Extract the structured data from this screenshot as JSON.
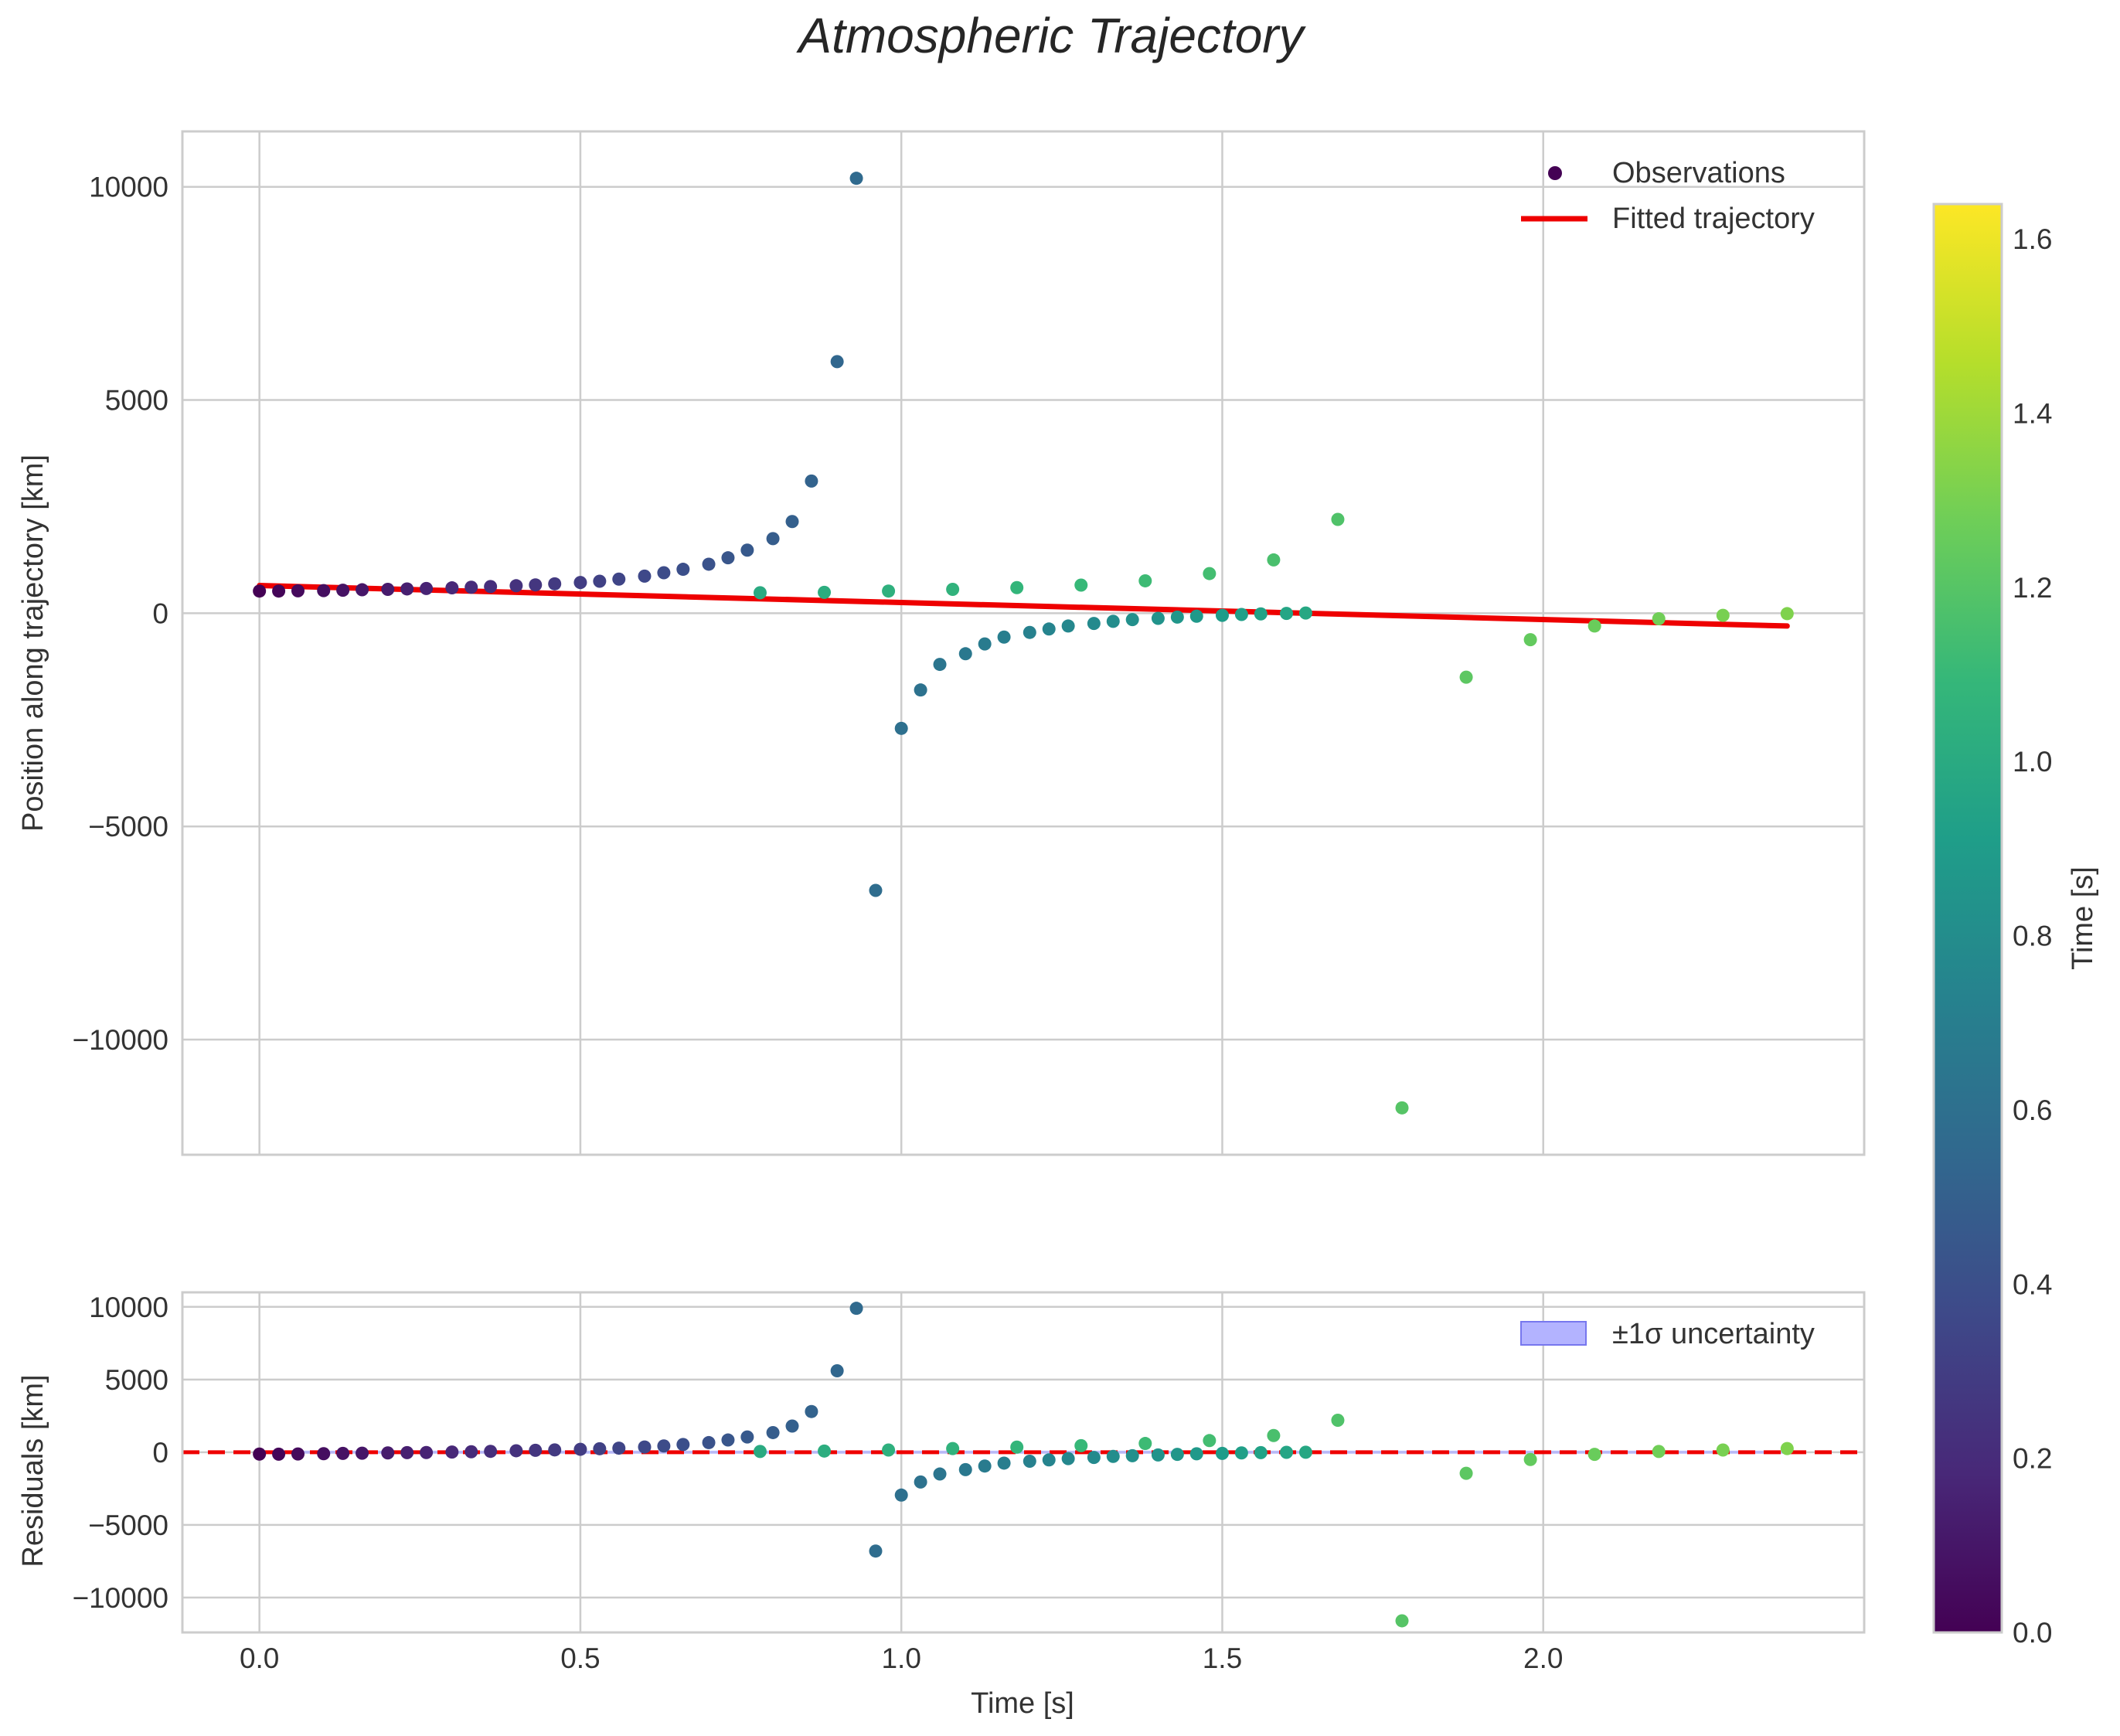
{
  "chart_data": {
    "type": "scatter",
    "title": "Atmospheric Trajectory",
    "colormap": "viridis",
    "colormap_stops": [
      "#440154",
      "#482878",
      "#3e4989",
      "#31688e",
      "#26828e",
      "#1f9e89",
      "#35b779",
      "#6ece58",
      "#b5de2b",
      "#fde725"
    ],
    "fit_color": "#ee0000",
    "band_color": "#b3b3ff",
    "panels": [
      {
        "id": "position",
        "ylabel": "Position along trajectory [km]",
        "ylim": [
          -12700,
          11300
        ],
        "yticks": [
          10000,
          5000,
          0,
          -5000,
          -10000
        ],
        "ytick_labels": [
          "10000",
          "5000",
          "0",
          "−5000",
          "−10000"
        ],
        "legend": [
          "Observations",
          "Fitted trajectory"
        ]
      },
      {
        "id": "residuals",
        "ylabel": "Residuals [km]",
        "ylim": [
          -12400,
          11000
        ],
        "yticks": [
          10000,
          5000,
          0,
          -5000,
          -10000
        ],
        "ytick_labels": [
          "10000",
          "5000",
          "0",
          "−5000",
          "−10000"
        ],
        "legend": [
          "±1σ uncertainty"
        ]
      }
    ],
    "xlim": [
      -0.12,
      2.5
    ],
    "xticks": [
      0.0,
      0.5,
      1.0,
      1.5,
      2.0
    ],
    "xtick_labels": [
      "0.0",
      "0.5",
      "1.0",
      "1.5",
      "2.0"
    ],
    "xlabel": "Time [s]",
    "colorbar": {
      "label": "Time [s]",
      "range": [
        0.0,
        1.64
      ],
      "ticks": [
        0.0,
        0.2,
        0.4,
        0.6,
        0.8,
        1.0,
        1.2,
        1.4,
        1.6
      ],
      "tick_labels": [
        "0.0",
        "0.2",
        "0.4",
        "0.6",
        "0.8",
        "1.0",
        "1.2",
        "1.4",
        "1.6"
      ]
    },
    "fitted_trajectory": {
      "x": [
        0.0,
        2.38
      ],
      "y": [
        650,
        -300
      ]
    },
    "series": [
      {
        "x": 0.0,
        "y": 520,
        "resid": -130,
        "c": 0.0
      },
      {
        "x": 0.03,
        "y": 520,
        "resid": -135,
        "c": 0.02
      },
      {
        "x": 0.06,
        "y": 525,
        "resid": -120,
        "c": 0.04
      },
      {
        "x": 0.1,
        "y": 530,
        "resid": -100,
        "c": 0.06
      },
      {
        "x": 0.13,
        "y": 540,
        "resid": -80,
        "c": 0.08
      },
      {
        "x": 0.16,
        "y": 550,
        "resid": -70,
        "c": 0.1
      },
      {
        "x": 0.2,
        "y": 560,
        "resid": -50,
        "c": 0.12
      },
      {
        "x": 0.23,
        "y": 570,
        "resid": -30,
        "c": 0.14
      },
      {
        "x": 0.26,
        "y": 580,
        "resid": -20,
        "c": 0.16
      },
      {
        "x": 0.3,
        "y": 595,
        "resid": 10,
        "c": 0.18
      },
      {
        "x": 0.33,
        "y": 610,
        "resid": 30,
        "c": 0.2
      },
      {
        "x": 0.36,
        "y": 625,
        "resid": 60,
        "c": 0.22
      },
      {
        "x": 0.4,
        "y": 645,
        "resid": 100,
        "c": 0.24
      },
      {
        "x": 0.43,
        "y": 665,
        "resid": 130,
        "c": 0.26
      },
      {
        "x": 0.46,
        "y": 690,
        "resid": 160,
        "c": 0.28
      },
      {
        "x": 0.5,
        "y": 720,
        "resid": 200,
        "c": 0.3
      },
      {
        "x": 0.53,
        "y": 750,
        "resid": 240,
        "c": 0.32
      },
      {
        "x": 0.56,
        "y": 800,
        "resid": 280,
        "c": 0.34
      },
      {
        "x": 0.6,
        "y": 870,
        "resid": 360,
        "c": 0.36
      },
      {
        "x": 0.63,
        "y": 950,
        "resid": 430,
        "c": 0.38
      },
      {
        "x": 0.66,
        "y": 1030,
        "resid": 530,
        "c": 0.4
      },
      {
        "x": 0.7,
        "y": 1150,
        "resid": 660,
        "c": 0.42
      },
      {
        "x": 0.73,
        "y": 1300,
        "resid": 840,
        "c": 0.44
      },
      {
        "x": 0.76,
        "y": 1480,
        "resid": 1050,
        "c": 0.46
      },
      {
        "x": 0.8,
        "y": 1750,
        "resid": 1350,
        "c": 0.48
      },
      {
        "x": 0.83,
        "y": 2150,
        "resid": 1800,
        "c": 0.5
      },
      {
        "x": 0.86,
        "y": 3100,
        "resid": 2800,
        "c": 0.52
      },
      {
        "x": 0.9,
        "y": 5900,
        "resid": 5600,
        "c": 0.54
      },
      {
        "x": 0.93,
        "y": 10200,
        "resid": 9900,
        "c": 0.56
      },
      {
        "x": 0.96,
        "y": -6500,
        "resid": -6800,
        "c": 0.58
      },
      {
        "x": 1.0,
        "y": -2700,
        "resid": -2950,
        "c": 0.6
      },
      {
        "x": 1.03,
        "y": -1800,
        "resid": -2050,
        "c": 0.62
      },
      {
        "x": 1.06,
        "y": -1200,
        "resid": -1500,
        "c": 0.64
      },
      {
        "x": 1.1,
        "y": -950,
        "resid": -1200,
        "c": 0.66
      },
      {
        "x": 1.13,
        "y": -720,
        "resid": -950,
        "c": 0.68
      },
      {
        "x": 1.16,
        "y": -560,
        "resid": -750,
        "c": 0.7
      },
      {
        "x": 1.2,
        "y": -450,
        "resid": -620,
        "c": 0.72
      },
      {
        "x": 1.23,
        "y": -370,
        "resid": -530,
        "c": 0.74
      },
      {
        "x": 1.26,
        "y": -300,
        "resid": -440,
        "c": 0.76
      },
      {
        "x": 1.3,
        "y": -240,
        "resid": -360,
        "c": 0.78
      },
      {
        "x": 1.33,
        "y": -190,
        "resid": -290,
        "c": 0.8
      },
      {
        "x": 1.36,
        "y": -150,
        "resid": -240,
        "c": 0.82
      },
      {
        "x": 1.4,
        "y": -120,
        "resid": -190,
        "c": 0.84
      },
      {
        "x": 1.43,
        "y": -90,
        "resid": -150,
        "c": 0.86
      },
      {
        "x": 1.46,
        "y": -70,
        "resid": -110,
        "c": 0.88
      },
      {
        "x": 1.5,
        "y": -50,
        "resid": -80,
        "c": 0.9
      },
      {
        "x": 1.53,
        "y": -30,
        "resid": -50,
        "c": 0.92
      },
      {
        "x": 1.56,
        "y": -15,
        "resid": -30,
        "c": 0.94
      },
      {
        "x": 1.6,
        "y": -5,
        "resid": -10,
        "c": 0.96
      },
      {
        "x": 1.63,
        "y": 5,
        "resid": 0,
        "c": 0.98
      },
      {
        "x": 0.78,
        "y": 480,
        "resid": 50,
        "c": 1.0
      },
      {
        "x": 0.88,
        "y": 490,
        "resid": 80,
        "c": 1.02
      },
      {
        "x": 0.98,
        "y": 520,
        "resid": 150,
        "c": 1.04
      },
      {
        "x": 1.08,
        "y": 560,
        "resid": 250,
        "c": 1.06
      },
      {
        "x": 1.18,
        "y": 600,
        "resid": 350,
        "c": 1.08
      },
      {
        "x": 1.28,
        "y": 660,
        "resid": 450,
        "c": 1.1
      },
      {
        "x": 1.38,
        "y": 760,
        "resid": 600,
        "c": 1.12
      },
      {
        "x": 1.48,
        "y": 930,
        "resid": 800,
        "c": 1.14
      },
      {
        "x": 1.58,
        "y": 1250,
        "resid": 1150,
        "c": 1.16
      },
      {
        "x": 1.68,
        "y": 2200,
        "resid": 2200,
        "c": 1.18
      },
      {
        "x": 1.78,
        "y": -11600,
        "resid": -11600,
        "c": 1.2
      },
      {
        "x": 1.88,
        "y": -1500,
        "resid": -1450,
        "c": 1.22
      },
      {
        "x": 1.98,
        "y": -620,
        "resid": -500,
        "c": 1.24
      },
      {
        "x": 2.08,
        "y": -300,
        "resid": -150,
        "c": 1.26
      },
      {
        "x": 2.18,
        "y": -130,
        "resid": 50,
        "c": 1.28
      },
      {
        "x": 2.28,
        "y": -50,
        "resid": 150,
        "c": 1.3
      },
      {
        "x": 2.38,
        "y": -10,
        "resid": 250,
        "c": 1.32
      }
    ]
  }
}
